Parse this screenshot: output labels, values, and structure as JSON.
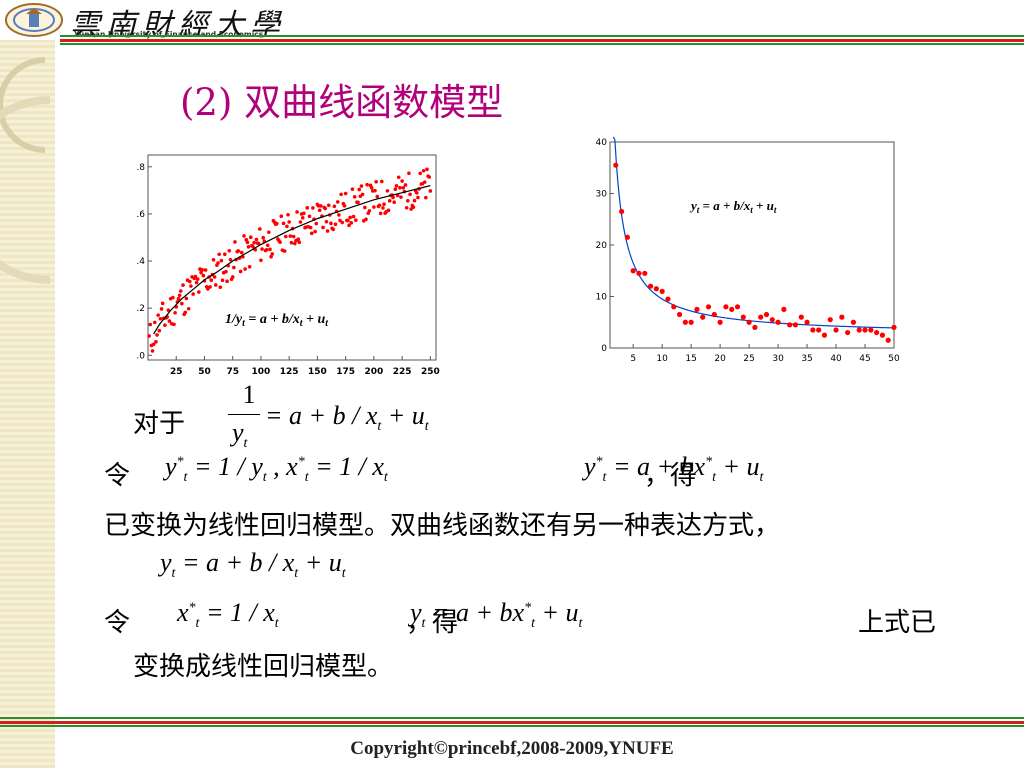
{
  "header": {
    "logo_text": "雲南財經大學",
    "university_en": "Yunnan University of Finance and Economics"
  },
  "slide": {
    "title": "(2) 双曲线函数模型"
  },
  "chart_data": [
    {
      "type": "scatter",
      "title": "",
      "xlabel": "",
      "ylabel": "",
      "xlim": [
        0,
        255
      ],
      "ylim": [
        -0.02,
        0.85
      ],
      "x_ticks": [
        "25",
        "50",
        "75",
        "100",
        "125",
        "150",
        "175",
        "200",
        "225",
        "250"
      ],
      "y_ticks": [
        ".0",
        ".2",
        ".4",
        ".6",
        ".8"
      ],
      "annotation": "1/yt = a + b/xt + ut",
      "curve": {
        "x": [
          5,
          10,
          20,
          30,
          40,
          50,
          60,
          75,
          100,
          125,
          150,
          175,
          200,
          225,
          250
        ],
        "y": [
          0.09,
          0.13,
          0.19,
          0.24,
          0.28,
          0.32,
          0.35,
          0.4,
          0.47,
          0.53,
          0.58,
          0.62,
          0.66,
          0.69,
          0.72
        ]
      },
      "points_seed": 11,
      "n_points": 250,
      "point_color": "#ff0000",
      "curve_color": "#000000"
    },
    {
      "type": "scatter",
      "title": "",
      "xlabel": "",
      "ylabel": "",
      "xlim": [
        1,
        50
      ],
      "ylim": [
        0,
        40
      ],
      "x_ticks": [
        "5",
        "10",
        "15",
        "20",
        "25",
        "30",
        "35",
        "40",
        "45",
        "50"
      ],
      "y_ticks": [
        "0",
        "10",
        "20",
        "30",
        "40"
      ],
      "annotation": "yt = a + b/xt + ut",
      "x": [
        2,
        3,
        4,
        5,
        6,
        7,
        8,
        9,
        10,
        11,
        12,
        13,
        14,
        15,
        16,
        17,
        18,
        19,
        20,
        21,
        22,
        23,
        24,
        25,
        26,
        27,
        28,
        29,
        30,
        31,
        32,
        33,
        34,
        35,
        36,
        37,
        38,
        39,
        40,
        41,
        42,
        43,
        44,
        45,
        46,
        47,
        48,
        49,
        50
      ],
      "y": [
        35.5,
        26.5,
        21.5,
        15,
        14.5,
        14.5,
        12,
        11.5,
        11,
        9.5,
        8,
        6.5,
        5,
        5,
        7.5,
        6,
        8,
        6.5,
        5,
        8,
        7.5,
        8,
        6,
        5,
        4,
        6,
        6.5,
        5.5,
        5,
        7.5,
        4.5,
        4.5,
        6,
        5,
        3.5,
        3.5,
        2.5,
        5.5,
        3.5,
        6,
        3,
        5,
        3.5,
        3.5,
        3.5,
        3,
        2.5,
        1.5,
        4
      ],
      "curve": {
        "a": 2.5,
        "b": 70
      },
      "point_color": "#ff0000",
      "curve_color": "#0044cc"
    }
  ],
  "content": {
    "line1_label": "对于",
    "line2_ling": "令",
    "line2_de": "，得",
    "line3": "已变换为线性回归模型。双曲线函数还有另一种表达方式，",
    "line5_ling": "令",
    "line5_de": "，得",
    "line5_suffix": "上式已",
    "line6": "变换成线性回归模型。"
  },
  "math": {
    "frac_num": "1",
    "frac_den": "y",
    "sub_t": "t",
    "sup_star": "*",
    "eq_rest": " = a + b / x",
    "plus_u": " + u",
    "y_star": "y",
    "eq_inv": " = 1 / y",
    "comma_x": " , x",
    "eq_inv_x": " = 1 / x",
    "eq_a_bx": " = a + bx",
    "eq_a_b_over_x": " = a + b / x",
    "y": "y",
    "x": "x"
  },
  "footer": {
    "copyright": "Copyright©princebf,2008-2009,YNUFE"
  }
}
